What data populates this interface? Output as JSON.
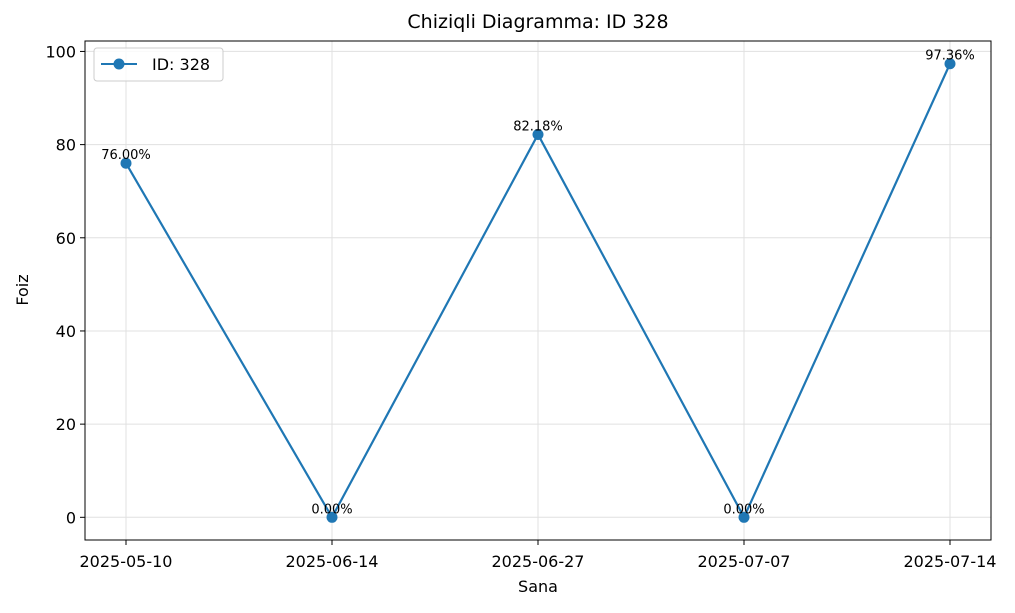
{
  "chart_data": {
    "type": "line",
    "title": "Chiziqli Diagramma: ID 328",
    "xlabel": "Sana",
    "ylabel": "Foiz",
    "categories": [
      "2025-05-10",
      "2025-06-14",
      "2025-06-27",
      "2025-07-07",
      "2025-07-14"
    ],
    "series": [
      {
        "name": "ID: 328",
        "values": [
          76.0,
          0.0,
          82.18,
          0.0,
          97.36
        ],
        "labels": [
          "76.00%",
          "0.00%",
          "82.18%",
          "0.00%",
          "97.36%"
        ],
        "color": "#1f77b4"
      }
    ],
    "ylim": [
      -4.87,
      102.24
    ],
    "yticks": [
      0,
      20,
      40,
      60,
      80,
      100
    ],
    "grid": true,
    "legend_position": "top-left"
  }
}
